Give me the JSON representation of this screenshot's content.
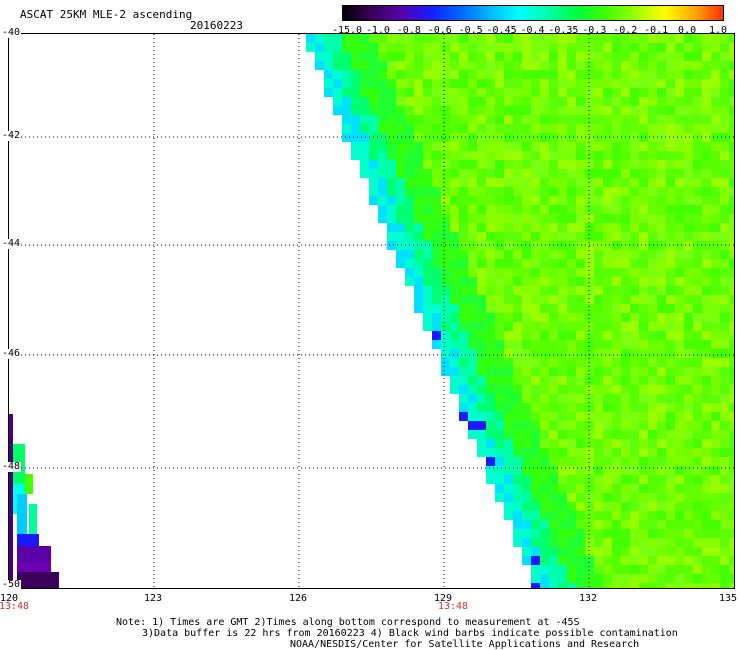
{
  "title": "ASCAT 25KM MLE-2 ascending",
  "date": "20160223",
  "colorbar": {
    "labels": [
      "-15.0",
      "-1.0",
      "-0.8",
      "-0.6",
      "-0.5",
      "-0.45",
      "-0.4",
      "-0.35",
      "-0.3",
      "-0.2",
      "-0.1",
      "0.0",
      "1.0"
    ],
    "colors": [
      "#000000",
      "#3a005a",
      "#5a00a8",
      "#1a1aff",
      "#0066ff",
      "#00b4ff",
      "#00ffff",
      "#00ffaa",
      "#00ff40",
      "#40ff00",
      "#9aff00",
      "#ffff00",
      "#ffaa00",
      "#ff3300"
    ]
  },
  "axes": {
    "lat_labels": [
      "-40",
      "-42",
      "-44",
      "-46",
      "-48",
      "-50"
    ],
    "lon_labels": [
      "120",
      "123",
      "126",
      "129",
      "132",
      "135"
    ]
  },
  "times": [
    "13:48",
    "13:48"
  ],
  "notes": [
    "Note: 1) Times are GMT 2)Times along bottom correspond to measurement at -45S",
    "3)Data buffer is 22 hrs from 20160223 4) Black wind barbs indicate possible contamination",
    "NOAA/NESDIS/Center for Satellite Applications and Research"
  ]
}
